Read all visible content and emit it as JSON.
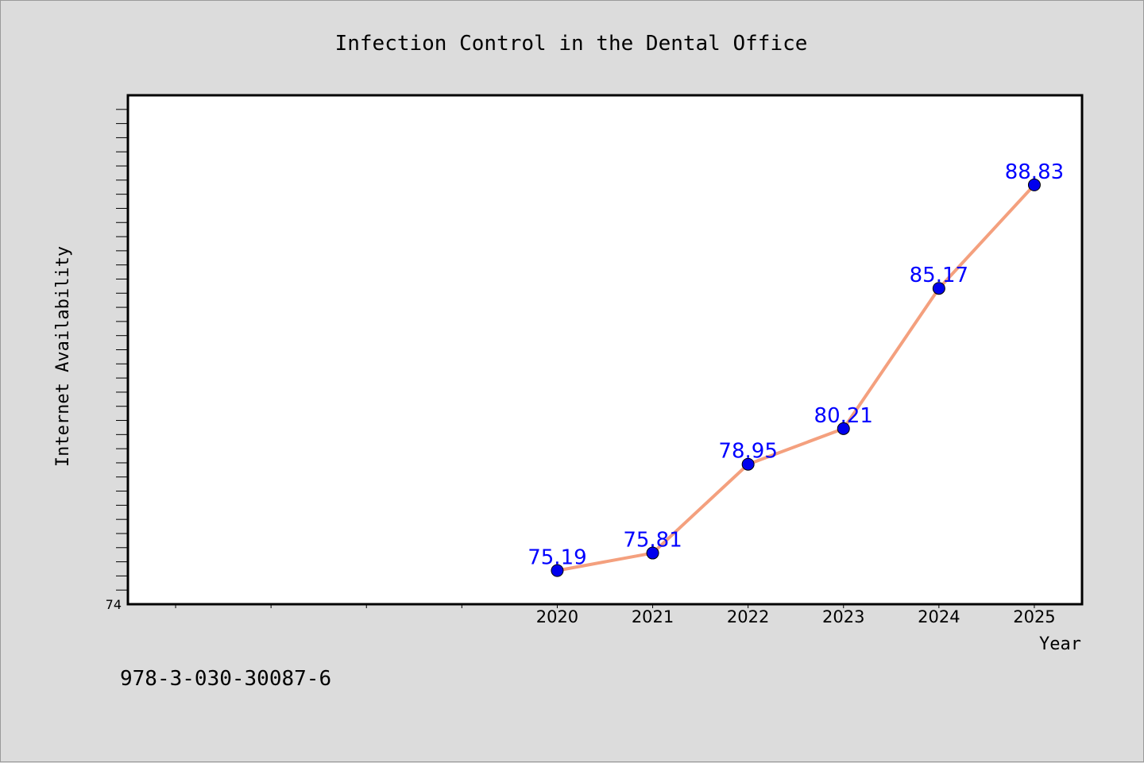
{
  "chart_data": {
    "type": "line",
    "title": "Infection Control in the Dental Office",
    "xlabel": "Year",
    "ylabel": "Internet Availability",
    "x": [
      2020,
      2021,
      2022,
      2023,
      2024,
      2025
    ],
    "x_tick_labels": [
      "2020",
      "2021",
      "2022",
      "2023",
      "2024",
      "2025"
    ],
    "y_tick_labels": [
      "74"
    ],
    "series": [
      {
        "values": [
          75.19,
          75.81,
          78.95,
          80.21,
          85.17,
          88.83
        ],
        "data_labels": [
          "75.19",
          "75.81",
          "78.95",
          "80.21",
          "85.17",
          "88.83"
        ]
      }
    ],
    "xlim": [
      2015.5,
      2025.5
    ],
    "ylim": [
      74,
      92
    ],
    "grid": false,
    "legend": "none",
    "colors": {
      "line": "#f4a07e",
      "marker": "#0000ee",
      "data_label": "#0000ff",
      "plot_background": "#ffffff",
      "page_background": "#dcdcdc"
    }
  },
  "footer": {
    "isbn": "978-3-030-30087-6"
  }
}
